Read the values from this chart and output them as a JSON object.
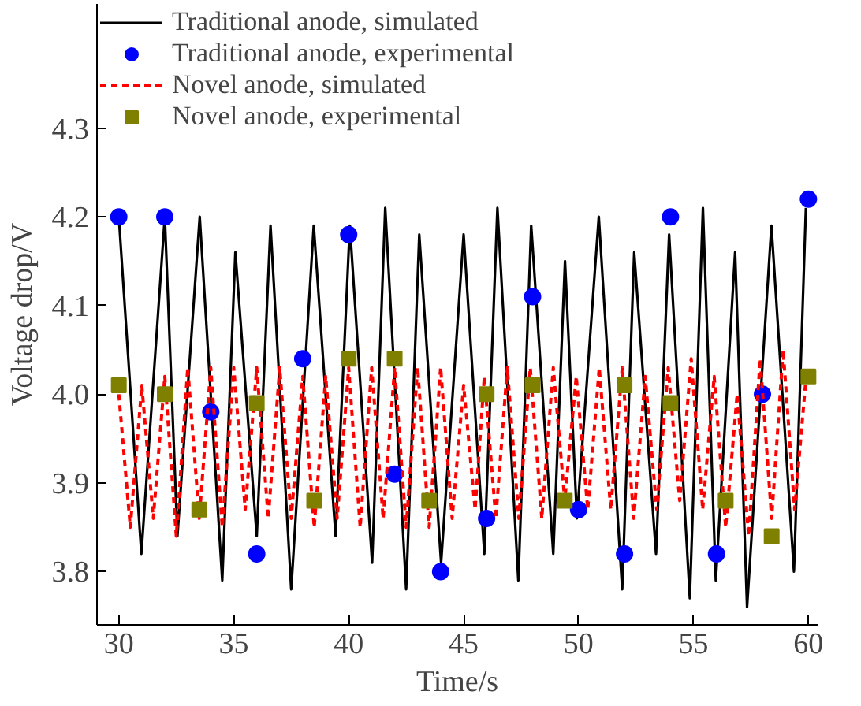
{
  "chart_data": {
    "type": "line",
    "xlabel": "Time/s",
    "ylabel": "Voltage drop/V",
    "xlim": [
      29.05,
      60.4
    ],
    "ylim": [
      3.74,
      4.44
    ],
    "xticks": [
      30,
      35,
      40,
      45,
      50,
      55,
      60
    ],
    "yticks": [
      {
        "value": 3.8,
        "label": "3.8"
      },
      {
        "value": 3.9,
        "label": "3.9"
      },
      {
        "value": 4.0,
        "label": "4.0"
      },
      {
        "value": 4.1,
        "label": "4.1"
      },
      {
        "value": 4.2,
        "label": "4.2"
      },
      {
        "value": 4.3,
        "label": "4.3"
      }
    ],
    "grid": false,
    "legend": "top left",
    "series": [
      {
        "name": "Traditional anode, simulated",
        "color": "#000000",
        "line_style": "solid",
        "x": [
          30.0,
          30.98,
          32.0,
          32.55,
          33.52,
          34.5,
          35.07,
          36.0,
          36.6,
          37.5,
          38.48,
          39.43,
          40.05,
          41.02,
          41.59,
          42.5,
          43.07,
          44.02,
          45.0,
          45.9,
          46.47,
          47.38,
          47.94,
          48.9,
          49.41,
          49.93,
          50.88,
          51.9,
          52.42,
          53.37,
          53.94,
          54.84,
          55.41,
          55.97,
          56.81,
          57.33,
          58.39,
          59.37,
          59.89
        ],
        "values": [
          4.2,
          3.82,
          4.2,
          3.84,
          4.2,
          3.79,
          4.16,
          3.84,
          4.19,
          3.78,
          4.19,
          3.84,
          4.19,
          3.81,
          4.21,
          3.78,
          4.18,
          3.81,
          4.18,
          3.82,
          4.21,
          3.79,
          4.19,
          3.82,
          4.15,
          3.86,
          4.2,
          3.78,
          4.16,
          3.82,
          4.18,
          3.77,
          4.21,
          3.79,
          4.16,
          3.76,
          4.19,
          3.8,
          4.21
        ]
      },
      {
        "name": "Traditional anode, experimental",
        "type": "scatter",
        "marker": "circle",
        "color": "#0000ff",
        "x": [
          30,
          32,
          34,
          36,
          38,
          40,
          42,
          44,
          46,
          48,
          50,
          52,
          54,
          56,
          58,
          60
        ],
        "values": [
          4.2,
          4.2,
          3.98,
          3.82,
          4.04,
          4.18,
          3.91,
          3.8,
          3.86,
          4.11,
          3.87,
          3.82,
          4.2,
          3.82,
          4.0,
          4.22
        ]
      },
      {
        "name": "Novel anode, simulated",
        "color": "#ff0000",
        "line_style": "dashed",
        "x": [
          30.0,
          30.5,
          31.0,
          31.5,
          32.0,
          32.5,
          33.0,
          33.5,
          34.0,
          34.5,
          35.0,
          35.5,
          36.0,
          36.5,
          37.0,
          37.5,
          38.0,
          38.5,
          39.0,
          39.5,
          40.0,
          40.5,
          41.0,
          41.5,
          42.0,
          42.5,
          43.0,
          43.5,
          44.0,
          44.5,
          45.0,
          45.5,
          45.9,
          46.4,
          46.9,
          47.4,
          47.9,
          48.4,
          48.9,
          49.4,
          49.9,
          50.4,
          50.9,
          51.4,
          51.9,
          52.4,
          52.9,
          53.4,
          53.9,
          54.4,
          54.9,
          55.4,
          55.9,
          56.4,
          56.9,
          57.4,
          57.9,
          58.4,
          58.9,
          59.4,
          59.9
        ],
        "values": [
          4.0,
          3.85,
          4.01,
          3.86,
          4.02,
          3.84,
          4.03,
          3.86,
          4.03,
          3.85,
          4.03,
          3.87,
          4.03,
          3.86,
          4.03,
          3.86,
          4.02,
          3.85,
          4.02,
          3.86,
          4.03,
          3.85,
          4.03,
          3.86,
          4.03,
          3.85,
          4.03,
          3.85,
          4.03,
          3.86,
          4.01,
          3.87,
          4.02,
          3.86,
          4.03,
          3.86,
          4.03,
          3.86,
          4.03,
          3.88,
          4.02,
          3.87,
          4.03,
          3.87,
          4.03,
          3.86,
          4.02,
          3.87,
          4.03,
          3.88,
          4.04,
          3.87,
          4.02,
          3.85,
          4.0,
          3.84,
          4.04,
          3.86,
          4.05,
          3.87,
          4.02
        ]
      },
      {
        "name": "Novel anode, experimental",
        "type": "scatter",
        "marker": "square",
        "color": "#808000",
        "x": [
          30,
          32,
          33.5,
          36,
          38.5,
          40,
          42,
          43.5,
          46,
          48,
          49.4,
          52,
          54,
          56.4,
          58.4,
          60
        ],
        "values": [
          4.01,
          4.0,
          3.87,
          3.99,
          3.88,
          4.04,
          4.04,
          3.88,
          4.0,
          4.01,
          3.88,
          4.01,
          3.99,
          3.88,
          3.84,
          4.02
        ]
      }
    ]
  }
}
